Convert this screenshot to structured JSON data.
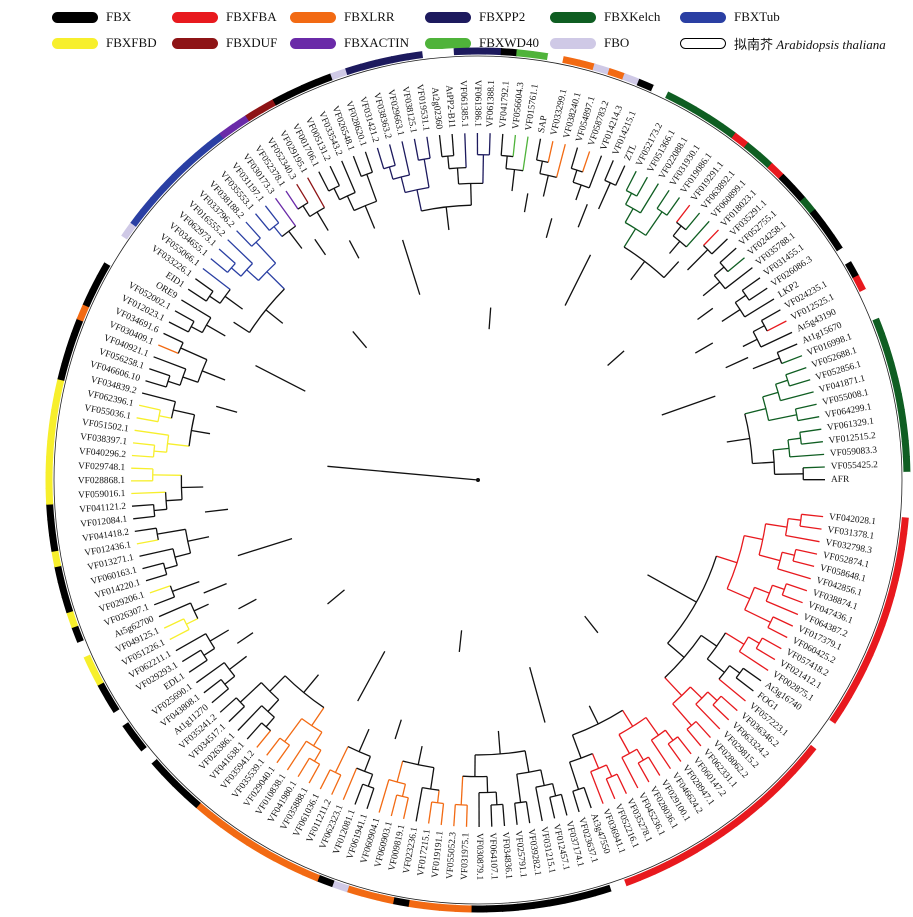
{
  "legend": [
    {
      "key": "FBX",
      "label": "FBX",
      "color": "#000000"
    },
    {
      "key": "FBXFBA",
      "label": "FBXFBA",
      "color": "#e8191e"
    },
    {
      "key": "FBXLRR",
      "label": "FBXLRR",
      "color": "#f26a13"
    },
    {
      "key": "FBXPP2",
      "label": "FBXPP2",
      "color": "#1d1a5e"
    },
    {
      "key": "FBXKelch",
      "label": "FBXKelch",
      "color": "#0f5e22"
    },
    {
      "key": "FBXTub",
      "label": "FBXTub",
      "color": "#2a3fa3"
    },
    {
      "key": "FBXFBD",
      "label": "FBXFBD",
      "color": "#f7ef2c"
    },
    {
      "key": "FBXDUF",
      "label": "FBXDUF",
      "color": "#8e1416"
    },
    {
      "key": "FBXACTIN",
      "label": "FBXACTIN",
      "color": "#6a2aa8"
    },
    {
      "key": "FBXWD40",
      "label": "FBXWD40",
      "color": "#4fb33a"
    },
    {
      "key": "FBO",
      "label": "FBO",
      "color": "#cfc9e6"
    },
    {
      "key": "Ath",
      "label_cn": "拟南芥",
      "label_species": "Arabidopsis thaliana",
      "color": "#ffffff",
      "outline": "#000000"
    }
  ],
  "leaves": [
    {
      "label": "VF042028.1",
      "cls": "FBXFBA"
    },
    {
      "label": "VF031378.1",
      "cls": "FBXFBA"
    },
    {
      "label": "VF032798.3",
      "cls": "FBXFBA"
    },
    {
      "label": "VF052874.1",
      "cls": "FBXFBA"
    },
    {
      "label": "VF058648.1",
      "cls": "FBXFBA"
    },
    {
      "label": "VF042856.1",
      "cls": "FBXFBA"
    },
    {
      "label": "VF038874.1",
      "cls": "FBXFBA"
    },
    {
      "label": "VF047436.1",
      "cls": "FBXFBA"
    },
    {
      "label": "VF064387.2",
      "cls": "FBXFBA"
    },
    {
      "label": "VF017379.1",
      "cls": "FBXFBA"
    },
    {
      "label": "VF060425.2",
      "cls": "FBXFBA"
    },
    {
      "label": "VF057418.2",
      "cls": "FBXFBA"
    },
    {
      "label": "VF021412.1",
      "cls": "FBXFBA"
    },
    {
      "label": "VF002875.1",
      "cls": "FBXFBA"
    },
    {
      "label": "At3g16740",
      "cls": "Ath"
    },
    {
      "label": "FOG1",
      "cls": "Ath"
    },
    {
      "label": "VF057223.1",
      "cls": "FBXFBA"
    },
    {
      "label": "VF036346.2",
      "cls": "FBXFBA"
    },
    {
      "label": "VF063324.2",
      "cls": "FBXFBA"
    },
    {
      "label": "VF029815.2",
      "cls": "FBXFBA"
    },
    {
      "label": "VF028062.2",
      "cls": "FBXFBA"
    },
    {
      "label": "VF062331.1",
      "cls": "FBXFBA"
    },
    {
      "label": "VF060147.2",
      "cls": "FBXFBA"
    },
    {
      "label": "VF028947.1",
      "cls": "FBXFBA"
    },
    {
      "label": "VF046624.2",
      "cls": "FBXFBA"
    },
    {
      "label": "VF029100.1",
      "cls": "FBXFBA"
    },
    {
      "label": "VF028036.1",
      "cls": "FBXFBA"
    },
    {
      "label": "VF045236.1",
      "cls": "FBXFBA"
    },
    {
      "label": "VF035278.1",
      "cls": "FBXFBA"
    },
    {
      "label": "VF052216.1",
      "cls": "FBXFBA"
    },
    {
      "label": "VF036941.1",
      "cls": "FBXFBA"
    },
    {
      "label": "At3g47550",
      "cls": "Ath"
    },
    {
      "label": "VF023637.1",
      "cls": "FBX"
    },
    {
      "label": "VF037174.1",
      "cls": "FBX"
    },
    {
      "label": "VF012457.1",
      "cls": "FBX"
    },
    {
      "label": "VF031215.1",
      "cls": "FBX"
    },
    {
      "label": "VF039282.1",
      "cls": "FBX"
    },
    {
      "label": "VF025791.1",
      "cls": "FBX"
    },
    {
      "label": "VF034836.1",
      "cls": "FBX"
    },
    {
      "label": "VF064107.1",
      "cls": "FBX"
    },
    {
      "label": "VF030879.1",
      "cls": "FBX"
    },
    {
      "label": "VF031975.1",
      "cls": "FBXLRR"
    },
    {
      "label": "VF055052.3",
      "cls": "FBXLRR"
    },
    {
      "label": "VF019191.1",
      "cls": "FBXLRR"
    },
    {
      "label": "VF017215.1",
      "cls": "FBXLRR"
    },
    {
      "label": "VF023236.1",
      "cls": "FBX"
    },
    {
      "label": "VF009819.1",
      "cls": "FBXLRR"
    },
    {
      "label": "VF060903.1",
      "cls": "FBXLRR"
    },
    {
      "label": "VF060904.1",
      "cls": "FBXLRR"
    },
    {
      "label": "VF061941.1",
      "cls": "FBO"
    },
    {
      "label": "VF012081.1",
      "cls": "FBX"
    },
    {
      "label": "VF062323.1",
      "cls": "FBXLRR"
    },
    {
      "label": "VF011211.2",
      "cls": "FBXLRR"
    },
    {
      "label": "VF061036.1",
      "cls": "FBXLRR"
    },
    {
      "label": "VF035888.1",
      "cls": "FBXLRR"
    },
    {
      "label": "VF041980.1",
      "cls": "FBXLRR"
    },
    {
      "label": "VF010838.1",
      "cls": "FBXLRR"
    },
    {
      "label": "VF029040.1",
      "cls": "FBXLRR"
    },
    {
      "label": "VF035539.1",
      "cls": "FBXLRR"
    },
    {
      "label": "VF035941.2",
      "cls": "FBXLRR"
    },
    {
      "label": "VF041638.1",
      "cls": "FBX"
    },
    {
      "label": "VF026386.1",
      "cls": "FBX"
    },
    {
      "label": "VF034517.1",
      "cls": "FBX"
    },
    {
      "label": "VF035241.2",
      "cls": "FBX"
    },
    {
      "label": "At1g11270",
      "cls": "Ath"
    },
    {
      "label": "VF043808.1",
      "cls": "FBX"
    },
    {
      "label": "VF025690.1",
      "cls": "FBX"
    },
    {
      "label": "EDL1",
      "cls": "Ath"
    },
    {
      "label": "VF029293.1",
      "cls": "FBX"
    },
    {
      "label": "VF062211.1",
      "cls": "FBX"
    },
    {
      "label": "VF051226.1",
      "cls": "FBXFBD"
    },
    {
      "label": "VF049125.1",
      "cls": "FBXFBD"
    },
    {
      "label": "At5g62700",
      "cls": "Ath"
    },
    {
      "label": "VF026307.1",
      "cls": "FBX"
    },
    {
      "label": "VF029206.1",
      "cls": "FBXFBD"
    },
    {
      "label": "VF014220.1",
      "cls": "FBX"
    },
    {
      "label": "VF060163.1",
      "cls": "FBX"
    },
    {
      "label": "VF013271.1",
      "cls": "FBX"
    },
    {
      "label": "VF012436.1",
      "cls": "FBXFBD"
    },
    {
      "label": "VF041418.2",
      "cls": "FBX"
    },
    {
      "label": "VF012084.1",
      "cls": "FBX"
    },
    {
      "label": "VF041121.2",
      "cls": "FBX"
    },
    {
      "label": "VF059016.1",
      "cls": "FBXFBD"
    },
    {
      "label": "VF028868.1",
      "cls": "FBXFBD"
    },
    {
      "label": "VF029748.1",
      "cls": "FBXFBD"
    },
    {
      "label": "VF040296.2",
      "cls": "FBXFBD"
    },
    {
      "label": "VF038397.1",
      "cls": "FBXFBD"
    },
    {
      "label": "VF051502.1",
      "cls": "FBXFBD"
    },
    {
      "label": "VF055036.1",
      "cls": "FBXFBD"
    },
    {
      "label": "VF062396.1",
      "cls": "FBXFBD"
    },
    {
      "label": "VF034839.2",
      "cls": "FBX"
    },
    {
      "label": "VF046606.10",
      "cls": "FBX"
    },
    {
      "label": "VF056258.1",
      "cls": "FBX"
    },
    {
      "label": "VF040921.1",
      "cls": "FBX"
    },
    {
      "label": "VF030409.1",
      "cls": "FBXLRR"
    },
    {
      "label": "VF034691.6",
      "cls": "FBX"
    },
    {
      "label": "VF012023.1",
      "cls": "FBX"
    },
    {
      "label": "VF052002.1",
      "cls": "FBX"
    },
    {
      "label": "ORE9",
      "cls": "Ath"
    },
    {
      "label": "EID1",
      "cls": "Ath"
    },
    {
      "label": "VF033226.1",
      "cls": "FBO"
    },
    {
      "label": "VF055066.1",
      "cls": "FBXTub"
    },
    {
      "label": "VF034655.1",
      "cls": "FBXTub"
    },
    {
      "label": "VF062973.1",
      "cls": "FBXTub"
    },
    {
      "label": "VF016555.2",
      "cls": "FBXTub"
    },
    {
      "label": "VF033796.2",
      "cls": "FBXTub"
    },
    {
      "label": "VF038188.2",
      "cls": "FBXTub"
    },
    {
      "label": "VF035553.1",
      "cls": "FBXTub"
    },
    {
      "label": "VF031197.1",
      "cls": "FBXTub"
    },
    {
      "label": "VF030173.3",
      "cls": "FBXACTIN"
    },
    {
      "label": "VF052378.1",
      "cls": "FBXACTIN"
    },
    {
      "label": "VF052340.3",
      "cls": "FBXDUF"
    },
    {
      "label": "VF029195.1",
      "cls": "FBXDUF"
    },
    {
      "label": "VF001706.1",
      "cls": "FBX"
    },
    {
      "label": "VF005131.2",
      "cls": "FBX"
    },
    {
      "label": "VF033543.2",
      "cls": "FBX"
    },
    {
      "label": "VF026548.1",
      "cls": "FBX"
    },
    {
      "label": "VF028620.1",
      "cls": "FBO"
    },
    {
      "label": "VF031421.2",
      "cls": "FBXPP2"
    },
    {
      "label": "VF038363.2",
      "cls": "FBXPP2"
    },
    {
      "label": "VF029663.1",
      "cls": "FBXPP2"
    },
    {
      "label": "VF038125.1",
      "cls": "FBXPP2"
    },
    {
      "label": "VF019531.1",
      "cls": "FBXPP2"
    },
    {
      "label": "At2g02360",
      "cls": "Ath"
    },
    {
      "label": "AtPP2-B11",
      "cls": "Ath"
    },
    {
      "label": "VF061385.1",
      "cls": "FBXPP2"
    },
    {
      "label": "VF061386.1",
      "cls": "FBXPP2"
    },
    {
      "label": "VF061388.1",
      "cls": "FBXPP2"
    },
    {
      "label": "VF041792.1",
      "cls": "FBX"
    },
    {
      "label": "VF056604.3",
      "cls": "FBXWD40"
    },
    {
      "label": "VF015761.1",
      "cls": "FBXWD40"
    },
    {
      "label": "SAP",
      "cls": "Ath"
    },
    {
      "label": "VF033299.1",
      "cls": "FBXLRR"
    },
    {
      "label": "VF038240.1",
      "cls": "FBXLRR"
    },
    {
      "label": "VF054897.1",
      "cls": "FBO"
    },
    {
      "label": "VF058783.2",
      "cls": "FBXLRR"
    },
    {
      "label": "VF014214.3",
      "cls": "FBO"
    },
    {
      "label": "VF014215.1",
      "cls": "FBX"
    },
    {
      "label": "ZTL",
      "cls": "Ath"
    },
    {
      "label": "VF052173.2",
      "cls": "FBXKelch"
    },
    {
      "label": "VF051366.1",
      "cls": "FBXKelch"
    },
    {
      "label": "VF022088.1",
      "cls": "FBXKelch"
    },
    {
      "label": "VF031930.1",
      "cls": "FBXKelch"
    },
    {
      "label": "VF019086.1",
      "cls": "FBXKelch"
    },
    {
      "label": "VF019291.1",
      "cls": "FBXFBA"
    },
    {
      "label": "VF063892.1",
      "cls": "FBXKelch"
    },
    {
      "label": "VF060899.1",
      "cls": "FBXKelch"
    },
    {
      "label": "VF018023.1",
      "cls": "FBXFBA"
    },
    {
      "label": "VF035291.1",
      "cls": "FBX"
    },
    {
      "label": "VF052755.1",
      "cls": "FBX"
    },
    {
      "label": "VF024258.1",
      "cls": "FBXKelch"
    },
    {
      "label": "VF035788.1",
      "cls": "FBX"
    },
    {
      "label": "VF031455.1",
      "cls": "FBX"
    },
    {
      "label": "VF026086.3",
      "cls": "FBX"
    },
    {
      "label": "LKP2",
      "cls": "Ath"
    },
    {
      "label": "VF024235.1",
      "cls": "FBX"
    },
    {
      "label": "VF012525.1",
      "cls": "FBXFBA"
    },
    {
      "label": "At5g43190",
      "cls": "Ath"
    },
    {
      "label": "At1g15670",
      "cls": "Ath"
    },
    {
      "label": "VF016998.1",
      "cls": "FBXKelch"
    },
    {
      "label": "VF052688.1",
      "cls": "FBXKelch"
    },
    {
      "label": "VF052856.1",
      "cls": "FBXKelch"
    },
    {
      "label": "VF041871.1",
      "cls": "FBXKelch"
    },
    {
      "label": "VF055008.1",
      "cls": "FBXKelch"
    },
    {
      "label": "VF064299.1",
      "cls": "FBXKelch"
    },
    {
      "label": "VF061329.1",
      "cls": "FBXKelch"
    },
    {
      "label": "VF012515.2",
      "cls": "FBXKelch"
    },
    {
      "label": "VF059083.3",
      "cls": "FBXKelch"
    },
    {
      "label": "VF055425.2",
      "cls": "FBXKelch"
    },
    {
      "label": "AFR",
      "cls": "Ath"
    }
  ]
}
